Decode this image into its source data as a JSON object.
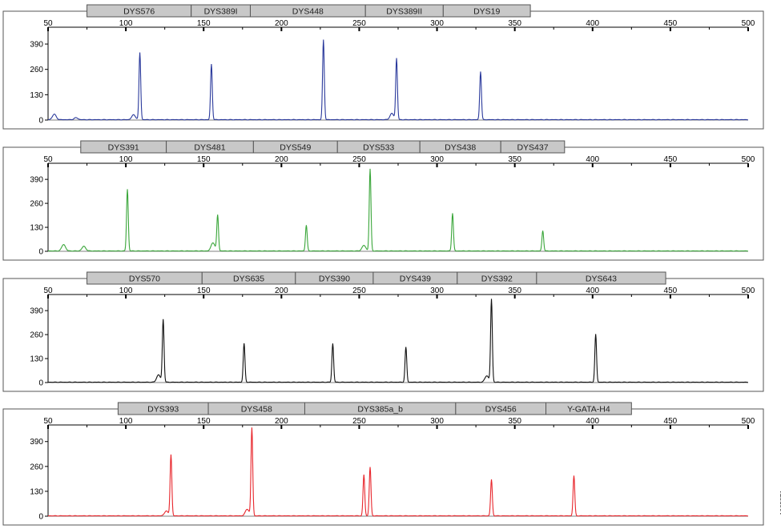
{
  "figure_id": "10653TA",
  "colors": {
    "frame": "#555555",
    "marker_fill": "#c8c8c8",
    "marker_border": "#555555"
  },
  "chart_data": [
    {
      "type": "line",
      "color": "#2b3a9c",
      "xlim": [
        50,
        500
      ],
      "ylim": [
        0,
        460
      ],
      "x_ticks": [
        50,
        100,
        150,
        200,
        250,
        300,
        350,
        400,
        450,
        500
      ],
      "y_ticks": [
        0,
        130,
        260,
        390
      ],
      "markers": [
        {
          "label": "DYS576",
          "start": 75,
          "end": 142
        },
        {
          "label": "DYS389I",
          "start": 142,
          "end": 180
        },
        {
          "label": "DYS448",
          "start": 180,
          "end": 254
        },
        {
          "label": "DYS389II",
          "start": 254,
          "end": 304
        },
        {
          "label": "DYS19",
          "start": 304,
          "end": 360
        }
      ],
      "peaks": [
        {
          "x": 54,
          "y": 28
        },
        {
          "x": 68,
          "y": 10
        },
        {
          "x": 105,
          "y": 25
        },
        {
          "x": 109,
          "y": 345
        },
        {
          "x": 155,
          "y": 285
        },
        {
          "x": 227,
          "y": 410
        },
        {
          "x": 271,
          "y": 32
        },
        {
          "x": 274,
          "y": 315
        },
        {
          "x": 328,
          "y": 248
        }
      ]
    },
    {
      "type": "line",
      "color": "#3aa63a",
      "xlim": [
        50,
        500
      ],
      "ylim": [
        0,
        460
      ],
      "x_ticks": [
        50,
        100,
        150,
        200,
        250,
        300,
        350,
        400,
        450,
        500
      ],
      "y_ticks": [
        0,
        130,
        260,
        390
      ],
      "markers": [
        {
          "label": "DYS391",
          "start": 71,
          "end": 126
        },
        {
          "label": "DYS481",
          "start": 126,
          "end": 182
        },
        {
          "label": "DYS549",
          "start": 182,
          "end": 236
        },
        {
          "label": "DYS533",
          "start": 236,
          "end": 289
        },
        {
          "label": "DYS438",
          "start": 289,
          "end": 341
        },
        {
          "label": "DYS437",
          "start": 341,
          "end": 382
        }
      ],
      "peaks": [
        {
          "x": 60,
          "y": 35
        },
        {
          "x": 73,
          "y": 25
        },
        {
          "x": 101,
          "y": 335
        },
        {
          "x": 156,
          "y": 45
        },
        {
          "x": 159,
          "y": 195
        },
        {
          "x": 216,
          "y": 140
        },
        {
          "x": 253,
          "y": 30
        },
        {
          "x": 257,
          "y": 445
        },
        {
          "x": 310,
          "y": 205
        },
        {
          "x": 368,
          "y": 110
        }
      ]
    },
    {
      "type": "line",
      "color": "#111111",
      "xlim": [
        50,
        500
      ],
      "ylim": [
        0,
        460
      ],
      "x_ticks": [
        50,
        100,
        150,
        200,
        250,
        300,
        350,
        400,
        450,
        500
      ],
      "y_ticks": [
        0,
        130,
        260,
        390
      ],
      "markers": [
        {
          "label": "DYS570",
          "start": 75,
          "end": 149
        },
        {
          "label": "DYS635",
          "start": 149,
          "end": 209
        },
        {
          "label": "DYS390",
          "start": 209,
          "end": 259
        },
        {
          "label": "DYS439",
          "start": 259,
          "end": 313
        },
        {
          "label": "DYS392",
          "start": 313,
          "end": 364
        },
        {
          "label": "DYS643",
          "start": 364,
          "end": 447
        }
      ],
      "peaks": [
        {
          "x": 121,
          "y": 40
        },
        {
          "x": 124,
          "y": 340
        },
        {
          "x": 176,
          "y": 210
        },
        {
          "x": 233,
          "y": 210
        },
        {
          "x": 280,
          "y": 190
        },
        {
          "x": 332,
          "y": 35
        },
        {
          "x": 335,
          "y": 450
        },
        {
          "x": 402,
          "y": 260
        }
      ]
    },
    {
      "type": "line",
      "color": "#e8262c",
      "xlim": [
        50,
        500
      ],
      "ylim": [
        0,
        460
      ],
      "x_ticks": [
        50,
        100,
        150,
        200,
        250,
        300,
        350,
        400,
        450,
        500
      ],
      "y_ticks": [
        0,
        130,
        260,
        390
      ],
      "markers": [
        {
          "label": "DYS393",
          "start": 95,
          "end": 153
        },
        {
          "label": "DYS458",
          "start": 153,
          "end": 215
        },
        {
          "label": "DYS385a_b",
          "start": 215,
          "end": 312
        },
        {
          "label": "DYS456",
          "start": 312,
          "end": 370
        },
        {
          "label": "Y-GATA-H4",
          "start": 370,
          "end": 425
        }
      ],
      "peaks": [
        {
          "x": 126,
          "y": 25
        },
        {
          "x": 129,
          "y": 320
        },
        {
          "x": 178,
          "y": 35
        },
        {
          "x": 181,
          "y": 460
        },
        {
          "x": 253,
          "y": 215
        },
        {
          "x": 257,
          "y": 255
        },
        {
          "x": 335,
          "y": 190
        },
        {
          "x": 388,
          "y": 210
        }
      ]
    }
  ]
}
